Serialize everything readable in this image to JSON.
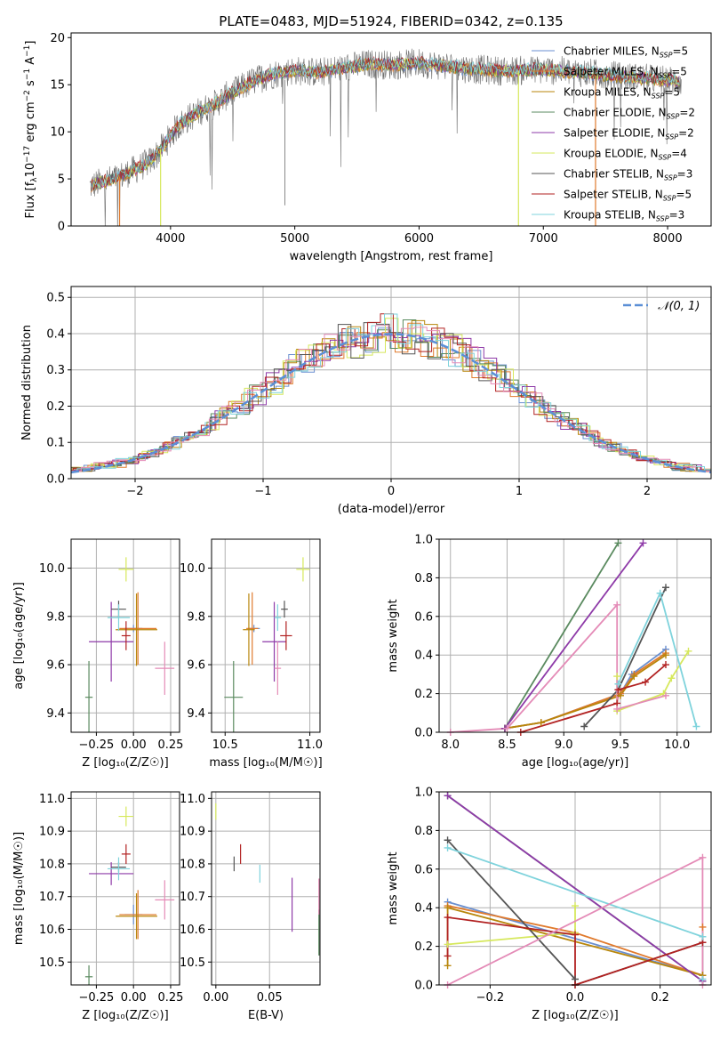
{
  "title": "PLATE=0483, MJD=51924, FIBERID=0342, z=0.135",
  "colors": {
    "chabrier_miles": "#6a8fd0",
    "salpeter_miles": "#e07a2d",
    "kroupa_miles": "#b8860b",
    "chabrier_elodie": "#5a8a5f",
    "salpeter_elodie": "#8e3aa8",
    "kroupa_elodie": "#d6e85c",
    "chabrier_stelib": "#555555",
    "salpeter_stelib": "#b22222",
    "kroupa_stelib": "#7fd3dc",
    "normal_fit": "#5b8fd6",
    "pink": "#e48bb7",
    "grid": "#b0b0b0"
  },
  "chart_data": [
    {
      "type": "line",
      "title": "PLATE=0483, MJD=51924, FIBERID=0342, z=0.135",
      "xlabel": "wavelength [Angstrom, rest frame]",
      "ylabel_parts": {
        "a": "Flux [f",
        "sub": "λ",
        "b": "10",
        "sup": "−17",
        "c": " erg cm",
        "sup2": "−2",
        "d": " s",
        "sup3": "−1",
        "e": " A",
        "sup4": "−1",
        "f": "]"
      },
      "xlim": [
        3200,
        8350
      ],
      "ylim": [
        0,
        20.5
      ],
      "xticks": [
        4000,
        5000,
        6000,
        7000,
        8000
      ],
      "yticks": [
        0,
        5,
        10,
        15,
        20
      ],
      "grid": false,
      "legend_placement": "top-right",
      "continuum": {
        "x": [
          3350,
          3450,
          3550,
          3650,
          3750,
          3850,
          3950,
          4050,
          4150,
          4250,
          4350,
          4450,
          4550,
          4650,
          4750,
          4850,
          5000,
          5200,
          5400,
          5600,
          5800,
          6000,
          6200,
          6400,
          6600,
          6800,
          7000,
          7200,
          7400,
          7600,
          7800,
          8000,
          8100
        ],
        "y": [
          4.2,
          4.7,
          5.0,
          5.6,
          6.2,
          7.0,
          8.6,
          10.5,
          11.5,
          12.3,
          12.9,
          13.8,
          14.5,
          15.3,
          15.8,
          16.2,
          16.5,
          16.3,
          16.8,
          17.2,
          17.1,
          17.3,
          17.0,
          16.7,
          16.5,
          16.5,
          16.6,
          16.4,
          16.2,
          15.9,
          15.7,
          15.5,
          15.4
        ]
      },
      "legend": [
        {
          "label": "Chabrier MILES, N",
          "sub": "SSP",
          "rest": "=5",
          "color_key": "chabrier_miles"
        },
        {
          "label": "Salpeter MILES, N",
          "sub": "SSP",
          "rest": "=5",
          "color_key": "salpeter_miles"
        },
        {
          "label": "Kroupa MILES, N",
          "sub": "SSP",
          "rest": "=5",
          "color_key": "kroupa_miles"
        },
        {
          "label": "Chabrier ELODIE, N",
          "sub": "SSP",
          "rest": "=2",
          "color_key": "chabrier_elodie"
        },
        {
          "label": "Salpeter ELODIE, N",
          "sub": "SSP",
          "rest": "=2",
          "color_key": "salpeter_elodie"
        },
        {
          "label": "Kroupa ELODIE, N",
          "sub": "SSP",
          "rest": "=4",
          "color_key": "kroupa_elodie"
        },
        {
          "label": "Chabrier STELIB, N",
          "sub": "SSP",
          "rest": "=3",
          "color_key": "chabrier_stelib"
        },
        {
          "label": "Salpeter STELIB, N",
          "sub": "SSP",
          "rest": "=5",
          "color_key": "salpeter_stelib"
        },
        {
          "label": "Kroupa STELIB, N",
          "sub": "SSP",
          "rest": "=3",
          "color_key": "kroupa_stelib"
        }
      ],
      "drops": [
        {
          "x": 3590,
          "color_key": "salpeter_miles"
        },
        {
          "x": 3920,
          "color_key": "kroupa_elodie"
        },
        {
          "x": 6800,
          "color_key": "kroupa_elodie"
        },
        {
          "x": 7420,
          "color_key": "salpeter_miles"
        }
      ]
    },
    {
      "type": "histogram",
      "xlabel": "(data-model)/error",
      "ylabel": "Normed distribution",
      "xlim": [
        -2.5,
        2.5
      ],
      "ylim": [
        0,
        0.53
      ],
      "xticks": [
        -2,
        -1,
        0,
        1,
        2
      ],
      "yticks": [
        0.0,
        0.1,
        0.2,
        0.3,
        0.4,
        0.5
      ],
      "grid": true,
      "legend_placement": "top-right",
      "legend": [
        {
          "label": "𝒩(0, 1)",
          "style": "dashed",
          "color_key": "normal_fit"
        }
      ],
      "bin_width": 0.1
    },
    {
      "type": "scatter",
      "xlabel": "Z [log₁₀(Z/Z☉)]",
      "ylabel": "age  [log₁₀(age/yr)]",
      "xlim": [
        -0.42,
        0.31
      ],
      "ylim": [
        9.32,
        10.12
      ],
      "xticks": [
        -0.25,
        0.0,
        0.25
      ],
      "xtick_labels": [
        "−0.25",
        "0.00",
        "0.25"
      ],
      "yticks": [
        9.4,
        9.6,
        9.8,
        10.0
      ],
      "grid": true,
      "points": [
        {
          "x": 0.0,
          "y": 9.75,
          "ex": 0.12,
          "ey": 0.03,
          "color_key": "chabrier_miles"
        },
        {
          "x": 0.03,
          "y": 9.75,
          "ex": 0.25,
          "ey": 0.3,
          "color_key": "salpeter_miles"
        },
        {
          "x": 0.02,
          "y": 9.745,
          "ex": 0.28,
          "ey": 0.3,
          "color_key": "kroupa_miles"
        },
        {
          "x": -0.3,
          "y": 9.465,
          "ex": 0.05,
          "ey": 0.3,
          "color_key": "chabrier_elodie"
        },
        {
          "x": -0.15,
          "y": 9.695,
          "ex": 0.3,
          "ey": 0.33,
          "color_key": "salpeter_elodie"
        },
        {
          "x": -0.05,
          "y": 9.995,
          "ex": 0.1,
          "ey": 0.1,
          "color_key": "kroupa_elodie"
        },
        {
          "x": -0.1,
          "y": 9.83,
          "ex": 0.1,
          "ey": 0.07,
          "color_key": "chabrier_stelib"
        },
        {
          "x": -0.05,
          "y": 9.72,
          "ex": 0.06,
          "ey": 0.12,
          "color_key": "salpeter_stelib"
        },
        {
          "x": -0.1,
          "y": 9.795,
          "ex": 0.15,
          "ey": 0.11,
          "color_key": "kroupa_stelib"
        },
        {
          "x": 0.21,
          "y": 9.585,
          "ex": 0.13,
          "ey": 0.22,
          "color_key": "pink"
        }
      ]
    },
    {
      "type": "scatter",
      "xlabel": "mass [log₁₀(M/M☉)]",
      "xlim": [
        10.42,
        11.06
      ],
      "ylim": [
        9.32,
        10.12
      ],
      "xticks": [
        10.5,
        11.0
      ],
      "xtick_labels": [
        "10.5",
        "11.0"
      ],
      "yticks": [
        9.4,
        9.6,
        9.8,
        10.0
      ],
      "grid": true,
      "points": [
        {
          "x": 10.67,
          "y": 9.75,
          "ex": 0.07,
          "ey": 0.03,
          "color_key": "chabrier_miles"
        },
        {
          "x": 10.66,
          "y": 9.75,
          "ex": 0.07,
          "ey": 0.3,
          "color_key": "salpeter_miles"
        },
        {
          "x": 10.64,
          "y": 9.745,
          "ex": 0.07,
          "ey": 0.3,
          "color_key": "kroupa_miles"
        },
        {
          "x": 10.55,
          "y": 9.465,
          "ex": 0.11,
          "ey": 0.3,
          "color_key": "chabrier_elodie"
        },
        {
          "x": 10.79,
          "y": 9.695,
          "ex": 0.14,
          "ey": 0.33,
          "color_key": "salpeter_elodie"
        },
        {
          "x": 10.96,
          "y": 9.995,
          "ex": 0.08,
          "ey": 0.1,
          "color_key": "kroupa_elodie"
        },
        {
          "x": 10.85,
          "y": 9.83,
          "ex": 0.04,
          "ey": 0.07,
          "color_key": "chabrier_stelib"
        },
        {
          "x": 10.86,
          "y": 9.72,
          "ex": 0.07,
          "ey": 0.12,
          "color_key": "salpeter_stelib"
        },
        {
          "x": 10.81,
          "y": 9.795,
          "ex": 0.04,
          "ey": 0.11,
          "color_key": "kroupa_stelib"
        },
        {
          "x": 10.81,
          "y": 9.585,
          "ex": 0.04,
          "ey": 0.22,
          "color_key": "pink"
        }
      ]
    },
    {
      "type": "line",
      "xlabel": "age  [log₁₀(age/yr)]",
      "ylabel": "mass weight",
      "xlim": [
        7.9,
        10.3
      ],
      "ylim": [
        0,
        1.0
      ],
      "xticks": [
        8.0,
        8.5,
        9.0,
        9.5,
        10.0
      ],
      "xtick_labels": [
        "8.0",
        "8.5",
        "9.0",
        "9.5",
        "10.0"
      ],
      "yticks": [
        0.0,
        0.2,
        0.4,
        0.6,
        0.8,
        1.0
      ],
      "grid": true,
      "series": [
        {
          "color_key": "chabrier_miles",
          "x": [
            8.48,
            8.8,
            9.5,
            9.6,
            9.9
          ],
          "y": [
            0.02,
            0.05,
            0.2,
            0.3,
            0.43
          ]
        },
        {
          "color_key": "salpeter_miles",
          "x": [
            8.48,
            8.8,
            9.5,
            9.62,
            9.9
          ],
          "y": [
            0.02,
            0.05,
            0.2,
            0.3,
            0.41
          ]
        },
        {
          "color_key": "kroupa_miles",
          "x": [
            8.48,
            8.8,
            9.5,
            9.62,
            9.9
          ],
          "y": [
            0.02,
            0.05,
            0.19,
            0.29,
            0.4
          ]
        },
        {
          "color_key": "chabrier_elodie",
          "x": [
            8.48,
            9.48
          ],
          "y": [
            0.02,
            0.98
          ]
        },
        {
          "color_key": "salpeter_elodie",
          "x": [
            8.48,
            9.7
          ],
          "y": [
            0.02,
            0.98
          ]
        },
        {
          "color_key": "kroupa_elodie",
          "x": [
            9.47,
            9.47,
            9.88,
            9.95,
            10.1
          ],
          "y": [
            0.29,
            0.11,
            0.2,
            0.28,
            0.42
          ]
        },
        {
          "color_key": "chabrier_stelib",
          "x": [
            9.18,
            9.48,
            9.9
          ],
          "y": [
            0.03,
            0.22,
            0.75
          ]
        },
        {
          "color_key": "salpeter_stelib",
          "x": [
            8.62,
            9.47,
            9.48,
            9.72,
            9.9
          ],
          "y": [
            0.0,
            0.15,
            0.22,
            0.26,
            0.35
          ]
        },
        {
          "color_key": "kroupa_stelib",
          "x": [
            9.48,
            9.85,
            10.17
          ],
          "y": [
            0.25,
            0.72,
            0.03
          ]
        },
        {
          "color_key": "pink",
          "x": [
            8.0,
            8.5,
            9.47,
            9.47,
            9.9
          ],
          "y": [
            0.0,
            0.02,
            0.66,
            0.12,
            0.19
          ]
        }
      ]
    },
    {
      "type": "scatter",
      "xlabel": "Z [log₁₀(Z/Z☉)]",
      "ylabel": "mass [log₁₀(M/M☉)]",
      "xlim": [
        -0.42,
        0.31
      ],
      "ylim": [
        10.43,
        11.02
      ],
      "xticks": [
        -0.25,
        0.0,
        0.25
      ],
      "xtick_labels": [
        "−0.25",
        "0.00",
        "0.25"
      ],
      "yticks": [
        10.5,
        10.6,
        10.7,
        10.8,
        10.9,
        11.0
      ],
      "grid": true,
      "points": [
        {
          "x": 0.0,
          "y": 10.645,
          "ex": 0.12,
          "ey": 0.06,
          "color_key": "chabrier_miles"
        },
        {
          "x": 0.03,
          "y": 10.645,
          "ex": 0.25,
          "ey": 0.15,
          "color_key": "salpeter_miles"
        },
        {
          "x": 0.02,
          "y": 10.64,
          "ex": 0.28,
          "ey": 0.14,
          "color_key": "kroupa_miles"
        },
        {
          "x": -0.3,
          "y": 10.455,
          "ex": 0.05,
          "ey": 0.07,
          "color_key": "chabrier_elodie"
        },
        {
          "x": -0.15,
          "y": 10.77,
          "ex": 0.3,
          "ey": 0.07,
          "color_key": "salpeter_elodie"
        },
        {
          "x": -0.05,
          "y": 10.945,
          "ex": 0.1,
          "ey": 0.06,
          "color_key": "kroupa_elodie"
        },
        {
          "x": -0.1,
          "y": 10.79,
          "ex": 0.1,
          "ey": 0.03,
          "color_key": "chabrier_stelib"
        },
        {
          "x": -0.05,
          "y": 10.83,
          "ex": 0.06,
          "ey": 0.06,
          "color_key": "salpeter_stelib"
        },
        {
          "x": -0.1,
          "y": 10.785,
          "ex": 0.15,
          "ey": 0.07,
          "color_key": "kroupa_stelib"
        },
        {
          "x": 0.21,
          "y": 10.69,
          "ex": 0.13,
          "ey": 0.12,
          "color_key": "pink"
        }
      ]
    },
    {
      "type": "scatter",
      "xlabel": "E(B-V)",
      "xlim": [
        -0.004,
        0.097
      ],
      "ylim": [
        10.43,
        11.02
      ],
      "xticks": [
        0.0,
        0.05
      ],
      "xtick_labels": [
        "0.00",
        "0.05"
      ],
      "yticks": [
        10.5,
        10.6,
        10.7,
        10.8,
        10.9,
        11.0
      ],
      "grid": true,
      "points": [
        {
          "x": 0.0,
          "y": 10.96,
          "ex": 0,
          "ey": 0.05,
          "color_key": "kroupa_elodie"
        },
        {
          "x": 0.017,
          "y": 10.8,
          "ex": 0,
          "ey": 0.045,
          "color_key": "chabrier_stelib"
        },
        {
          "x": 0.023,
          "y": 10.83,
          "ex": 0,
          "ey": 0.06,
          "color_key": "salpeter_stelib"
        },
        {
          "x": 0.041,
          "y": 10.77,
          "ex": 0,
          "ey": 0.055,
          "color_key": "kroupa_stelib"
        },
        {
          "x": 0.071,
          "y": 10.675,
          "ex": 0,
          "ey": 0.165,
          "color_key": "salpeter_elodie"
        },
        {
          "x": 0.096,
          "y": 10.59,
          "ex": 0,
          "ey": 0.14,
          "color_key": "chabrier_elodie"
        },
        {
          "x": 0.096,
          "y": 10.7,
          "ex": 0,
          "ey": 0.11,
          "color_key": "pink"
        }
      ]
    },
    {
      "type": "line",
      "xlabel": "Z [log₁₀(Z/Z☉)]",
      "ylabel": "mass weight",
      "xlim": [
        -0.32,
        0.32
      ],
      "ylim": [
        0,
        1.0
      ],
      "xticks": [
        -0.2,
        0.0,
        0.2
      ],
      "xtick_labels": [
        "−0.2",
        "0.0",
        "0.2"
      ],
      "yticks": [
        0.0,
        0.2,
        0.4,
        0.6,
        0.8,
        1.0
      ],
      "grid": true,
      "series": [
        {
          "color_key": "chabrier_miles",
          "x": [
            -0.3,
            0.3
          ],
          "y": [
            0.43,
            0.05
          ]
        },
        {
          "color_key": "salpeter_miles",
          "x": [
            -0.3,
            0.0,
            0.3,
            0.3
          ],
          "y": [
            0.41,
            0.27,
            0.05,
            0.3
          ]
        },
        {
          "color_key": "kroupa_miles",
          "x": [
            -0.3,
            -0.3,
            0.3
          ],
          "y": [
            0.1,
            0.4,
            0.05
          ]
        },
        {
          "color_key": "chabrier_elodie",
          "x": [
            -0.3,
            0.3
          ],
          "y": [
            0.98,
            0.02
          ]
        },
        {
          "color_key": "salpeter_elodie",
          "x": [
            -0.3,
            0.3
          ],
          "y": [
            0.98,
            0.02
          ]
        },
        {
          "color_key": "kroupa_elodie",
          "x": [
            -0.3,
            0.0,
            0.0
          ],
          "y": [
            0.21,
            0.27,
            0.41
          ]
        },
        {
          "color_key": "chabrier_stelib",
          "x": [
            -0.3,
            0.0,
            0.0,
            0.3
          ],
          "y": [
            0.75,
            0.03,
            0.0,
            0.22
          ]
        },
        {
          "color_key": "salpeter_stelib",
          "x": [
            -0.3,
            -0.3,
            0.0,
            0.0,
            0.3
          ],
          "y": [
            0.15,
            0.35,
            0.26,
            0.0,
            0.22
          ]
        },
        {
          "color_key": "kroupa_stelib",
          "x": [
            -0.3,
            0.3,
            0.3
          ],
          "y": [
            0.71,
            0.25,
            0.03
          ]
        },
        {
          "color_key": "pink",
          "x": [
            -0.3,
            0.3,
            0.3
          ],
          "y": [
            0.0,
            0.66,
            0.0
          ]
        }
      ]
    }
  ]
}
